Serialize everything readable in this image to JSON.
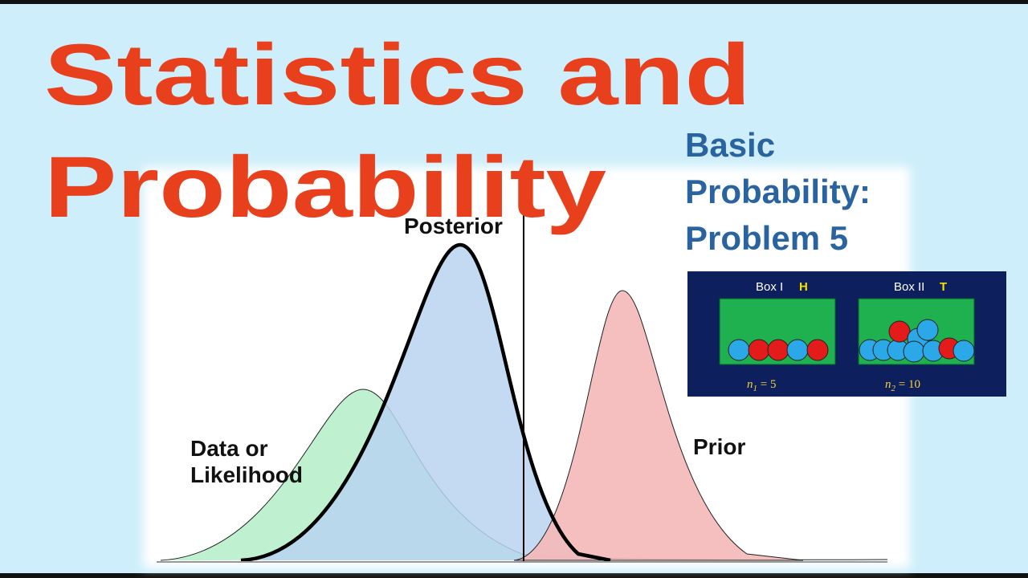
{
  "title": {
    "line1": "Statistics and",
    "line2": "Probability"
  },
  "subtitle": {
    "line1": "Basic",
    "line2": "Probability:",
    "line3": "Problem 5"
  },
  "plot_labels": {
    "posterior": "Posterior",
    "likelihood_line1": "Data or",
    "likelihood_line2": "Likelihood",
    "prior": "Prior"
  },
  "boxes": [
    {
      "name": "Box I",
      "side": "H",
      "n_symbol": "n",
      "n_subscript": "1",
      "n_rest": " = 5"
    },
    {
      "name": "Box II",
      "side": "T",
      "n_symbol": "n",
      "n_subscript": "2",
      "n_rest": " = 10"
    }
  ]
}
